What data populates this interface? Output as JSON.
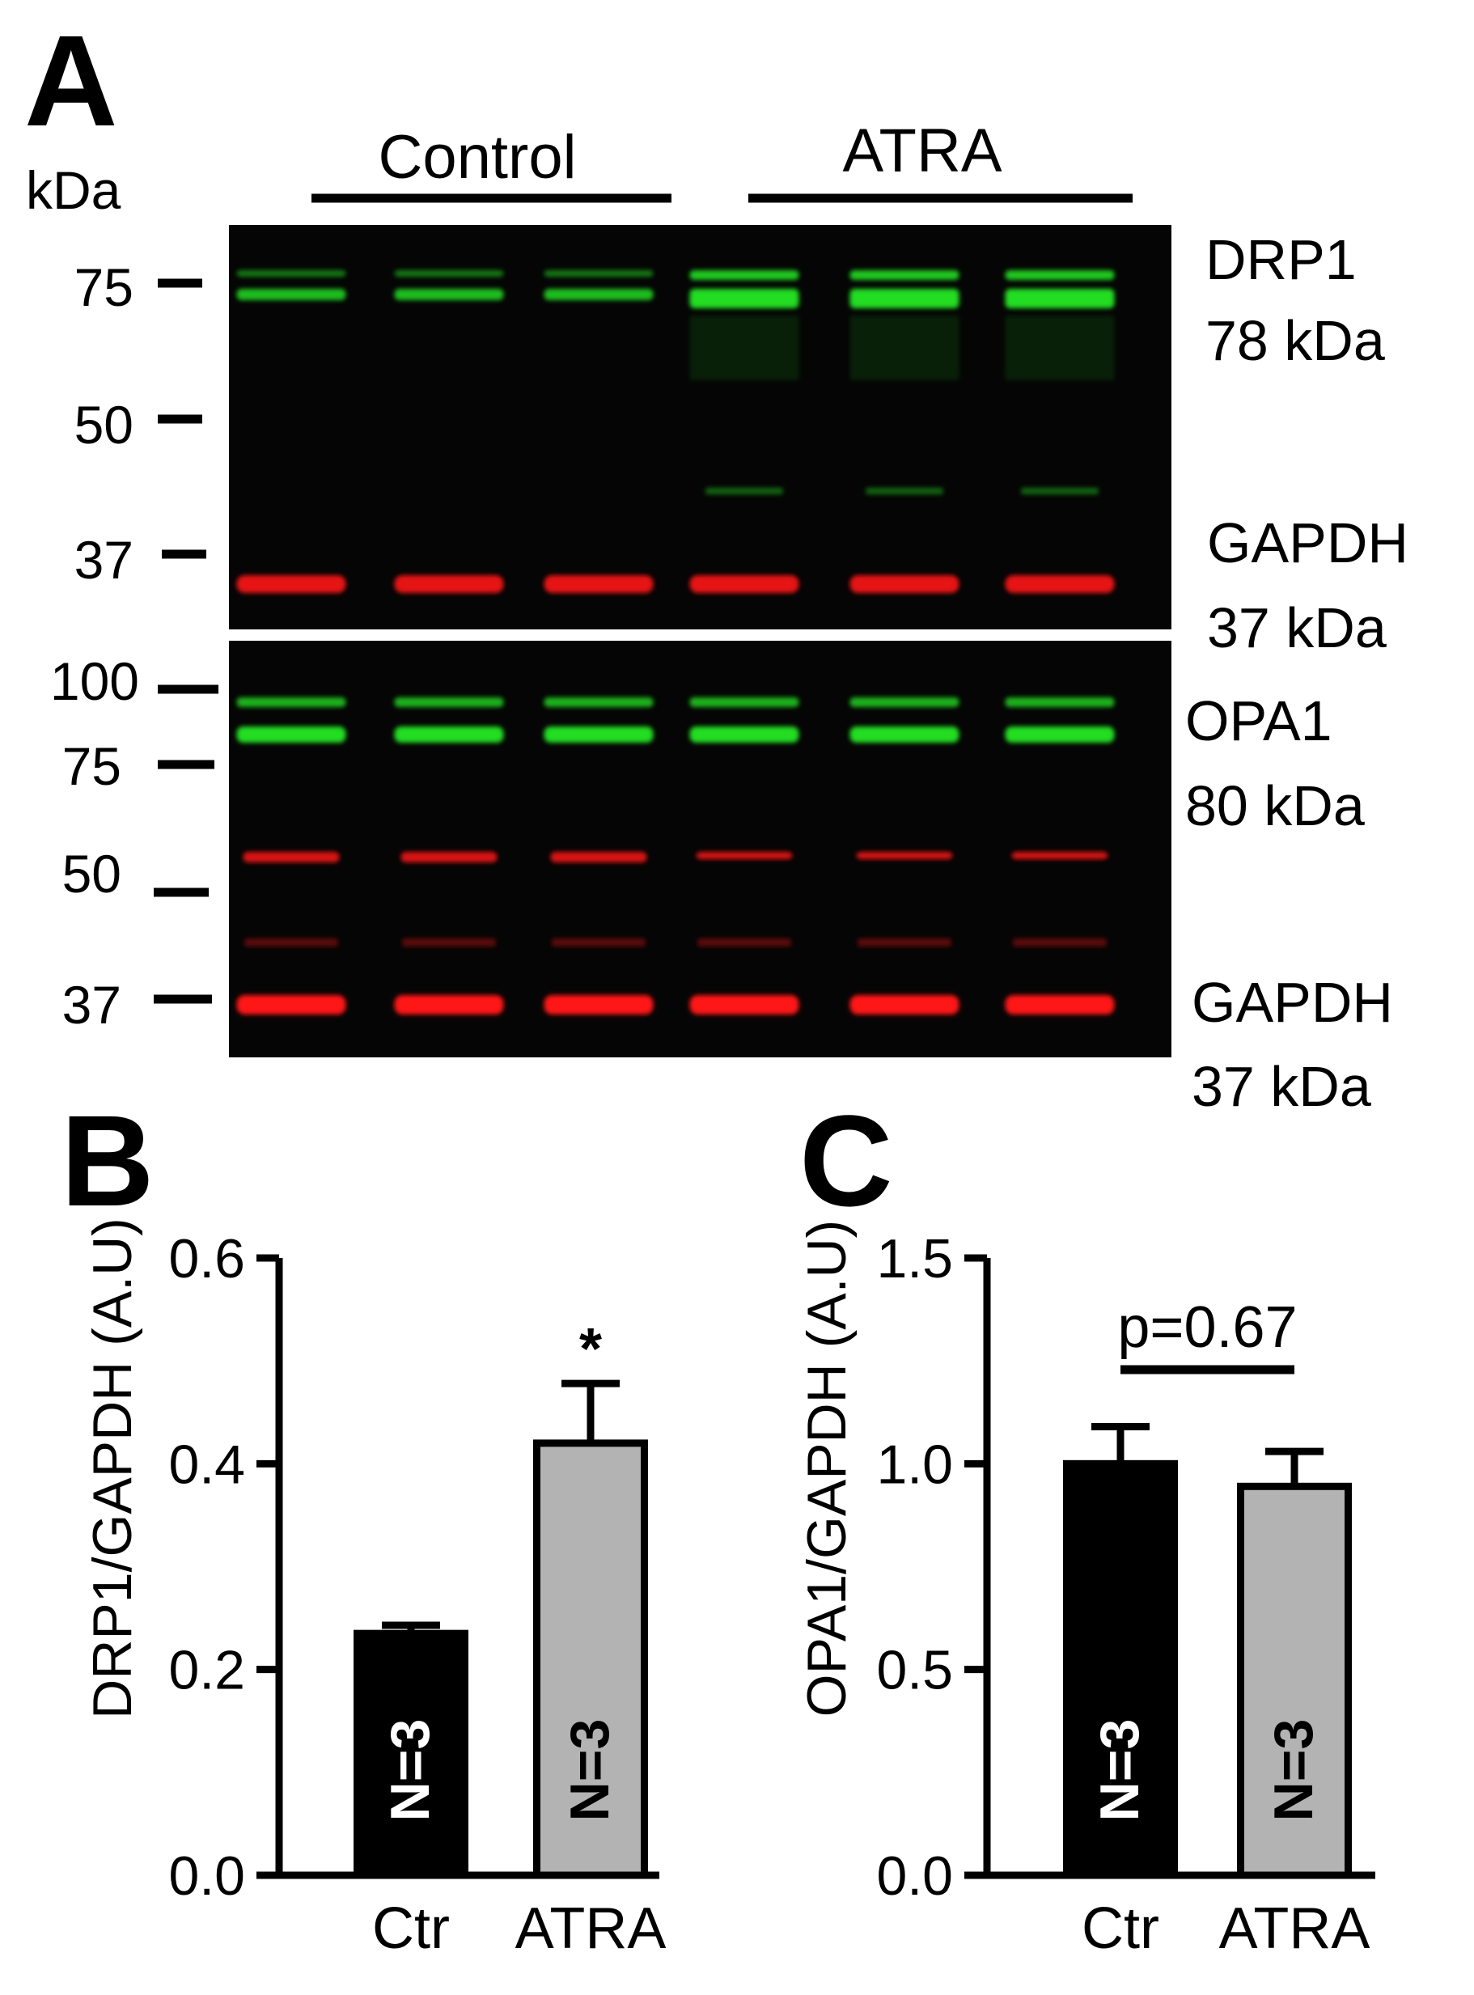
{
  "panels": {
    "a": "A",
    "b": "B",
    "c": "C"
  },
  "blot": {
    "kda_label": "kDa",
    "group_labels": [
      "Control",
      "ATRA"
    ],
    "top_markers": [
      "75",
      "50",
      "37"
    ],
    "bottom_markers": [
      "100",
      "75",
      "50",
      "37"
    ],
    "band_labels": [
      {
        "name": "DRP1",
        "size": "78 kDa"
      },
      {
        "name": "GAPDH",
        "size": "37 kDa"
      },
      {
        "name": "OPA1",
        "size": "80 kDa"
      },
      {
        "name": "GAPDH",
        "size": "37 kDa"
      }
    ],
    "colors": {
      "background": "#050505",
      "green": "#22dd22",
      "red": "#ff1818"
    }
  },
  "chart_data": [
    {
      "type": "bar",
      "categories": [
        "Ctr",
        "ATRA"
      ],
      "values": [
        0.235,
        0.42
      ],
      "errors": [
        0.008,
        0.058
      ],
      "bar_colors": [
        "#000000",
        "#b3b3b3"
      ],
      "bar_labels": [
        "N=3",
        "N=3"
      ],
      "annotations": [
        "",
        "*"
      ],
      "ylabel": "DRP1/GAPDH (A.U)",
      "ylim": [
        0,
        0.6
      ],
      "yticks": [
        "0.0",
        "0.2",
        "0.4",
        "0.6"
      ]
    },
    {
      "type": "bar",
      "categories": [
        "Ctr",
        "ATRA"
      ],
      "values": [
        1.0,
        0.945
      ],
      "errors": [
        0.09,
        0.085
      ],
      "bar_colors": [
        "#000000",
        "#b3b3b3"
      ],
      "bar_labels": [
        "N=3",
        "N=3"
      ],
      "comparison": "p=0.67",
      "ylabel": "OPA1/GAPDH (A.U)",
      "ylim": [
        0,
        1.5
      ],
      "yticks": [
        "0.0",
        "0.5",
        "1.0",
        "1.5"
      ]
    }
  ]
}
